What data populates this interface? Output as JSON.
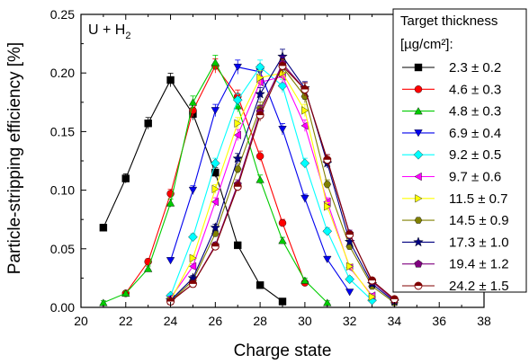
{
  "chart_data": {
    "type": "line",
    "title": "",
    "annotation": {
      "main": "U + H",
      "sub": "2"
    },
    "xlabel": "Charge state",
    "ylabel": "Particle-stripping efficiency [%]",
    "xlim": [
      20,
      38
    ],
    "ylim": [
      0.0,
      0.25
    ],
    "xticks": [
      20,
      22,
      24,
      26,
      28,
      30,
      32,
      34,
      36,
      38
    ],
    "yticks": [
      "0.00",
      "0.05",
      "0.10",
      "0.15",
      "0.20",
      "0.25"
    ],
    "grid": false,
    "legend_position": "right",
    "legend_title": [
      "Target thickness",
      "[µg/cm²]:"
    ],
    "series": [
      {
        "name": "2.3 ± 0.2",
        "color": "#000000",
        "marker": "square",
        "x": [
          21,
          22,
          23,
          24,
          25,
          26,
          27,
          28,
          29
        ],
        "y": [
          0.068,
          0.11,
          0.157,
          0.194,
          0.165,
          0.115,
          0.053,
          0.019,
          0.005
        ]
      },
      {
        "name": "4.6 ± 0.3",
        "color": "#ff0000",
        "marker": "circle",
        "x": [
          22,
          23,
          24,
          25,
          26,
          27,
          28,
          29,
          30
        ],
        "y": [
          0.012,
          0.039,
          0.097,
          0.168,
          0.206,
          0.18,
          0.129,
          0.072,
          0.021
        ]
      },
      {
        "name": "4.8 ± 0.3",
        "color": "#00cc00",
        "marker": "triangle-up",
        "x": [
          21,
          22,
          23,
          24,
          25,
          26,
          27,
          28,
          29,
          30,
          31
        ],
        "y": [
          0.004,
          0.012,
          0.033,
          0.089,
          0.175,
          0.209,
          0.172,
          0.109,
          0.057,
          0.023,
          0.004
        ]
      },
      {
        "name": "6.9 ± 0.4",
        "color": "#0000ee",
        "marker": "triangle-down",
        "x": [
          24,
          25,
          26,
          27,
          28,
          29,
          30,
          31,
          32
        ],
        "y": [
          0.04,
          0.1,
          0.168,
          0.205,
          0.201,
          0.152,
          0.093,
          0.041,
          0.013
        ]
      },
      {
        "name": "9.2 ± 0.5",
        "color": "#00ffff",
        "marker": "diamond",
        "x": [
          24,
          25,
          26,
          27,
          28,
          29,
          30,
          31,
          32,
          33
        ],
        "y": [
          0.01,
          0.06,
          0.123,
          0.177,
          0.205,
          0.189,
          0.123,
          0.065,
          0.024,
          0.006
        ]
      },
      {
        "name": "9.7 ± 0.6",
        "color": "#ff00ff",
        "marker": "triangle-left",
        "x": [
          24,
          25,
          26,
          27,
          28,
          29,
          30,
          31,
          32,
          33
        ],
        "y": [
          0.008,
          0.035,
          0.09,
          0.147,
          0.192,
          0.197,
          0.155,
          0.09,
          0.034,
          0.01
        ]
      },
      {
        "name": "11.5 ± 0.7",
        "color": "#ffff00",
        "marker": "triangle-right",
        "x": [
          24,
          25,
          26,
          27,
          28,
          29,
          30,
          31,
          32,
          33
        ],
        "y": [
          0.006,
          0.042,
          0.101,
          0.157,
          0.196,
          0.2,
          0.168,
          0.086,
          0.035,
          0.009
        ]
      },
      {
        "name": "14.5 ± 0.9",
        "color": "#808000",
        "marker": "hexagon",
        "x": [
          24,
          25,
          26,
          27,
          28,
          29,
          30,
          31,
          32,
          33,
          34
        ],
        "y": [
          0.005,
          0.023,
          0.063,
          0.118,
          0.17,
          0.205,
          0.18,
          0.105,
          0.052,
          0.018,
          0.004
        ]
      },
      {
        "name": "17.3 ± 1.0",
        "color": "#000080",
        "marker": "star",
        "x": [
          24,
          25,
          26,
          27,
          28,
          29,
          30,
          31,
          32,
          33,
          34
        ],
        "y": [
          0.006,
          0.025,
          0.068,
          0.127,
          0.182,
          0.214,
          0.187,
          0.123,
          0.056,
          0.02,
          0.005
        ]
      },
      {
        "name": "19.4 ± 1.2",
        "color": "#800080",
        "marker": "pentagon",
        "x": [
          24,
          25,
          26,
          27,
          28,
          29,
          30,
          31,
          32,
          33,
          34
        ],
        "y": [
          0.005,
          0.02,
          0.053,
          0.105,
          0.167,
          0.208,
          0.186,
          0.126,
          0.063,
          0.022,
          0.006
        ]
      },
      {
        "name": "24.2 ± 1.5",
        "color": "#800000",
        "marker": "circle-half",
        "x": [
          24,
          25,
          26,
          27,
          28,
          29,
          30,
          31,
          32,
          33,
          34
        ],
        "y": [
          0.005,
          0.02,
          0.052,
          0.103,
          0.164,
          0.206,
          0.186,
          0.126,
          0.062,
          0.023,
          0.007
        ]
      }
    ]
  }
}
